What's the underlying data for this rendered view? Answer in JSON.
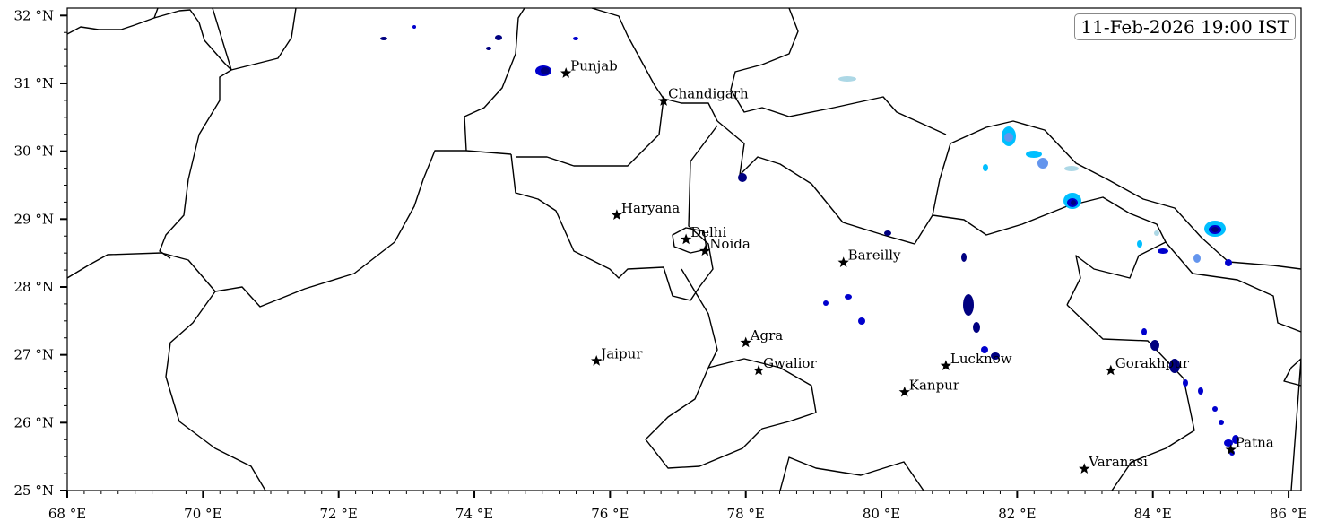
{
  "timestamp": "11-Feb-2026 19:00 IST",
  "map": {
    "lon_range": [
      68,
      86.2
    ],
    "lat_range": [
      25,
      32.1
    ],
    "lon_ticks": [
      {
        "v": 68,
        "label": "68 °E"
      },
      {
        "v": 70,
        "label": "70 °E"
      },
      {
        "v": 72,
        "label": "72 °E"
      },
      {
        "v": 74,
        "label": "74 °E"
      },
      {
        "v": 76,
        "label": "76 °E"
      },
      {
        "v": 78,
        "label": "78 °E"
      },
      {
        "v": 80,
        "label": "80 °E"
      },
      {
        "v": 82,
        "label": "82 °E"
      },
      {
        "v": 84,
        "label": "84 °E"
      },
      {
        "v": 86,
        "label": "86 °E"
      }
    ],
    "lat_ticks": [
      {
        "v": 25,
        "label": "25 °N"
      },
      {
        "v": 26,
        "label": "26 °N"
      },
      {
        "v": 27,
        "label": "27 °N"
      },
      {
        "v": 28,
        "label": "28 °N"
      },
      {
        "v": 29,
        "label": "29 °N"
      },
      {
        "v": 30,
        "label": "30 °N"
      },
      {
        "v": 31,
        "label": "31 °N"
      },
      {
        "v": 32,
        "label": "32 °N"
      }
    ],
    "precip_colors": [
      "#add8e6",
      "#00bfff",
      "#6495ed",
      "#0000cd",
      "#000080"
    ]
  },
  "cities": [
    {
      "name": "Punjab",
      "lon": 75.35,
      "lat": 31.15
    },
    {
      "name": "Chandigarh",
      "lon": 76.79,
      "lat": 30.74
    },
    {
      "name": "Haryana",
      "lon": 76.1,
      "lat": 29.06
    },
    {
      "name": "Delhi",
      "lon": 77.12,
      "lat": 28.7
    },
    {
      "name": "Noida",
      "lon": 77.4,
      "lat": 28.53
    },
    {
      "name": "Bareilly",
      "lon": 79.44,
      "lat": 28.36
    },
    {
      "name": "Agra",
      "lon": 78.0,
      "lat": 27.18
    },
    {
      "name": "Jaipur",
      "lon": 75.8,
      "lat": 26.91
    },
    {
      "name": "Gwalior",
      "lon": 78.19,
      "lat": 26.77
    },
    {
      "name": "Lucknow",
      "lon": 80.95,
      "lat": 26.84
    },
    {
      "name": "Kanpur",
      "lon": 80.34,
      "lat": 26.45
    },
    {
      "name": "Gorakhpur",
      "lon": 83.38,
      "lat": 26.77
    },
    {
      "name": "Varanasi",
      "lon": 82.99,
      "lat": 25.32
    },
    {
      "name": "Patna",
      "lon": 85.15,
      "lat": 25.6
    }
  ]
}
